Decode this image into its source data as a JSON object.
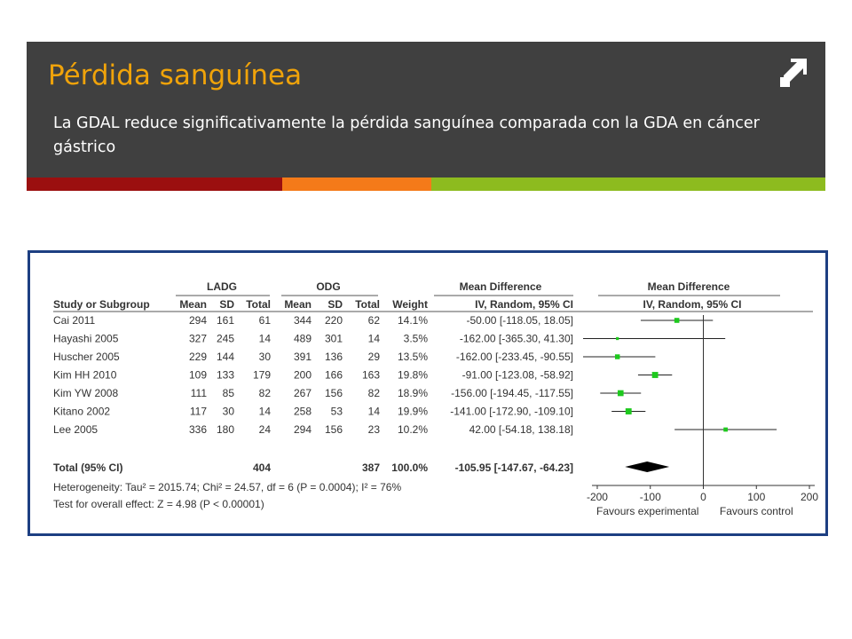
{
  "slide": {
    "title": "Pérdida sanguínea",
    "subtitle": "La GDAL reduce significativamente  la pérdida sanguínea comparada con la GDA en cáncer gástrico",
    "icon": "arrow-up-right-icon",
    "stripes": [
      {
        "color": "#9b0f0f",
        "width": 288
      },
      {
        "color": "#f47a19",
        "width": 168
      },
      {
        "color": "#8dbb1f",
        "width": 444
      }
    ],
    "colors": {
      "header_bg": "#404040",
      "title": "#f0a30a",
      "frame": "#1d3f82",
      "marker": "#1ec91e"
    }
  },
  "chart_data": {
    "type": "forest",
    "group_headers": {
      "ladg": "LADG",
      "odg": "ODG",
      "md_table": "Mean Difference",
      "md_plot": "Mean Difference"
    },
    "column_headers": {
      "study": "Study or Subgroup",
      "ladg_mean": "Mean",
      "ladg_sd": "SD",
      "ladg_total": "Total",
      "odg_mean": "Mean",
      "odg_sd": "SD",
      "odg_total": "Total",
      "weight": "Weight",
      "md_method": "IV, Random, 95% CI",
      "plot_method": "IV, Random, 95% CI"
    },
    "studies": [
      {
        "name": "Cai 2011",
        "ladg_mean": "294",
        "ladg_sd": "161",
        "ladg_total": "61",
        "odg_mean": "344",
        "odg_sd": "220",
        "odg_total": "62",
        "weight": "14.1%",
        "md_text": "-50.00 [-118.05, 18.05]",
        "md": -50.0,
        "lo": -118.05,
        "hi": 18.05,
        "w": 14.1
      },
      {
        "name": "Hayashi 2005",
        "ladg_mean": "327",
        "ladg_sd": "245",
        "ladg_total": "14",
        "odg_mean": "489",
        "odg_sd": "301",
        "odg_total": "14",
        "weight": "3.5%",
        "md_text": "-162.00 [-365.30, 41.30]",
        "md": -162.0,
        "lo": -365.3,
        "hi": 41.3,
        "w": 3.5
      },
      {
        "name": "Huscher 2005",
        "ladg_mean": "229",
        "ladg_sd": "144",
        "ladg_total": "30",
        "odg_mean": "391",
        "odg_sd": "136",
        "odg_total": "29",
        "weight": "13.5%",
        "md_text": "-162.00 [-233.45, -90.55]",
        "md": -162.0,
        "lo": -233.45,
        "hi": -90.55,
        "w": 13.5
      },
      {
        "name": "Kim HH 2010",
        "ladg_mean": "109",
        "ladg_sd": "133",
        "ladg_total": "179",
        "odg_mean": "200",
        "odg_sd": "166",
        "odg_total": "163",
        "weight": "19.8%",
        "md_text": "-91.00 [-123.08, -58.92]",
        "md": -91.0,
        "lo": -123.08,
        "hi": -58.92,
        "w": 19.8
      },
      {
        "name": "Kim YW 2008",
        "ladg_mean": "111",
        "ladg_sd": "85",
        "ladg_total": "82",
        "odg_mean": "267",
        "odg_sd": "156",
        "odg_total": "82",
        "weight": "18.9%",
        "md_text": "-156.00 [-194.45, -117.55]",
        "md": -156.0,
        "lo": -194.45,
        "hi": -117.55,
        "w": 18.9
      },
      {
        "name": "Kitano 2002",
        "ladg_mean": "117",
        "ladg_sd": "30",
        "ladg_total": "14",
        "odg_mean": "258",
        "odg_sd": "53",
        "odg_total": "14",
        "weight": "19.9%",
        "md_text": "-141.00 [-172.90, -109.10]",
        "md": -141.0,
        "lo": -172.9,
        "hi": -109.1,
        "w": 19.9
      },
      {
        "name": "Lee 2005",
        "ladg_mean": "336",
        "ladg_sd": "180",
        "ladg_total": "24",
        "odg_mean": "294",
        "odg_sd": "156",
        "odg_total": "23",
        "weight": "10.2%",
        "md_text": "42.00 [-54.18, 138.18]",
        "md": 42.0,
        "lo": -54.18,
        "hi": 138.18,
        "w": 10.2
      }
    ],
    "total": {
      "name": "Total (95% CI)",
      "ladg_total": "404",
      "odg_total": "387",
      "weight": "100.0%",
      "md_text": "-105.95 [-147.67, -64.23]",
      "md": -105.95,
      "lo": -147.67,
      "hi": -64.23
    },
    "heterogeneity": "Heterogeneity: Tau² = 2015.74; Chi² = 24.57, df = 6 (P = 0.0004); I² = 76%",
    "overall_effect": "Test for overall effect: Z = 4.98 (P < 0.00001)",
    "x_ticks": [
      -200,
      -100,
      0,
      100,
      200
    ],
    "x_tick_labels": [
      "-200",
      "-100",
      "0",
      "100",
      "200"
    ],
    "xlim": [
      -210,
      210
    ],
    "favours_left": "Favours experimental",
    "favours_right": "Favours control"
  }
}
